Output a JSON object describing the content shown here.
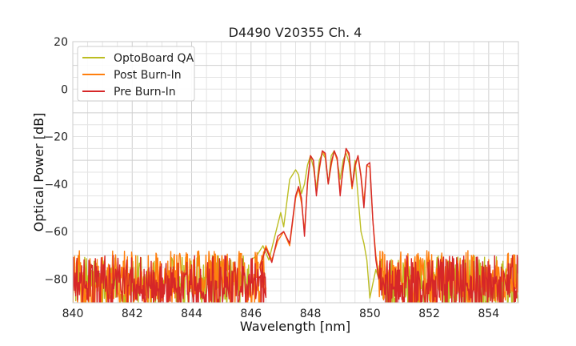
{
  "chart_data": {
    "type": "line",
    "title": "D4490 V20355 Ch. 4",
    "xlabel": "Wavelength [nm]",
    "ylabel": "Optical Power [dB]",
    "xlim": [
      840,
      855
    ],
    "ylim": [
      -90,
      20
    ],
    "xticks": [
      "840",
      "842",
      "844",
      "846",
      "848",
      "850",
      "852",
      "854"
    ],
    "yticks": [
      "−80",
      "−60",
      "−40",
      "−20",
      "0",
      "20"
    ],
    "grid": true,
    "legend_position": "top-left",
    "series": [
      {
        "name": "OptoBoard QA",
        "color": "#bcbd22",
        "noise_floor": {
          "range": [
            840,
            846
          ],
          "level": -80,
          "spread": 10
        },
        "x": [
          846.0,
          846.2,
          846.4,
          846.6,
          846.8,
          847.0,
          847.1,
          847.2,
          847.3,
          847.4,
          847.5,
          847.6,
          847.7,
          847.8,
          847.9,
          848.0,
          848.1,
          848.2,
          848.3,
          848.4,
          848.5,
          848.6,
          848.7,
          848.8,
          848.9,
          849.0,
          849.1,
          849.2,
          849.3,
          849.4,
          849.5,
          849.6,
          849.7,
          849.8,
          849.9,
          850.0,
          850.1,
          850.2,
          850.3
        ],
        "y": [
          -72,
          -70,
          -66,
          -72,
          -62,
          -52,
          -58,
          -48,
          -38,
          -36,
          -34,
          -36,
          -44,
          -40,
          -32,
          -28,
          -33,
          -42,
          -30,
          -27,
          -29,
          -40,
          -28,
          -26,
          -30,
          -38,
          -30,
          -27,
          -31,
          -42,
          -30,
          -45,
          -60,
          -65,
          -72,
          -88,
          -82,
          -76,
          -80
        ]
      },
      {
        "name": "Post Burn-In",
        "color": "#ff7f0e",
        "noise_floor": {
          "range": [
            840,
            846.5
          ],
          "level": -78,
          "spread": 10
        },
        "x": [
          846.3,
          846.5,
          846.7,
          846.9,
          847.1,
          847.3,
          847.5,
          847.6,
          847.7,
          847.8,
          847.9,
          848.0,
          848.1,
          848.2,
          848.3,
          848.4,
          848.5,
          848.6,
          848.7,
          848.8,
          848.9,
          849.0,
          849.1,
          849.2,
          849.3,
          849.4,
          849.5,
          849.6,
          849.7,
          849.8,
          849.9,
          850.0,
          850.1,
          850.2,
          850.3
        ],
        "y": [
          -74,
          -66,
          -72,
          -64,
          -60,
          -66,
          -46,
          -42,
          -48,
          -60,
          -40,
          -28,
          -30,
          -44,
          -34,
          -26,
          -28,
          -40,
          -32,
          -26,
          -30,
          -43,
          -34,
          -25,
          -28,
          -42,
          -33,
          -28,
          -36,
          -48,
          -32,
          -33,
          -55,
          -70,
          -78
        ]
      },
      {
        "name": "Pre Burn-In",
        "color": "#d62728",
        "noise_floor": {
          "range": [
            840,
            846.5
          ],
          "level": -80,
          "spread": 10
        },
        "x": [
          846.3,
          846.5,
          846.7,
          846.9,
          847.1,
          847.3,
          847.5,
          847.6,
          847.7,
          847.8,
          847.9,
          848.0,
          848.1,
          848.2,
          848.3,
          848.4,
          848.5,
          848.6,
          848.7,
          848.8,
          848.9,
          849.0,
          849.1,
          849.2,
          849.3,
          849.4,
          849.5,
          849.6,
          849.7,
          849.8,
          849.9,
          850.0,
          850.1,
          850.2,
          850.3
        ],
        "y": [
          -75,
          -67,
          -73,
          -62,
          -60,
          -65,
          -45,
          -41,
          -46,
          -62,
          -39,
          -28,
          -30,
          -45,
          -33,
          -26,
          -27,
          -40,
          -31,
          -26,
          -29,
          -45,
          -33,
          -25,
          -27,
          -41,
          -32,
          -28,
          -37,
          -50,
          -32,
          -31,
          -55,
          -72,
          -80
        ]
      }
    ]
  }
}
